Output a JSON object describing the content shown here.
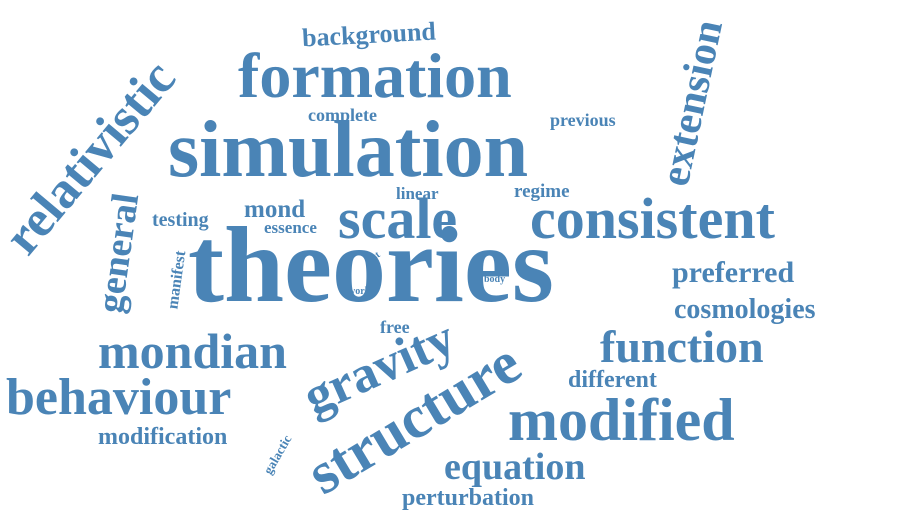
{
  "color": "#4a84b6",
  "words": [
    {
      "text": "theories",
      "weight": 100
    },
    {
      "text": "simulation",
      "weight": 72
    },
    {
      "text": "formation",
      "weight": 56
    },
    {
      "text": "scale",
      "weight": 50
    },
    {
      "text": "consistent",
      "weight": 50
    },
    {
      "text": "structure",
      "weight": 48
    },
    {
      "text": "gravity",
      "weight": 44
    },
    {
      "text": "relativistic",
      "weight": 42
    },
    {
      "text": "behaviour",
      "weight": 40
    },
    {
      "text": "mondian",
      "weight": 40
    },
    {
      "text": "modified",
      "weight": 38
    },
    {
      "text": "function",
      "weight": 32
    },
    {
      "text": "extension",
      "weight": 30
    },
    {
      "text": "equation",
      "weight": 28
    },
    {
      "text": "general",
      "weight": 26
    },
    {
      "text": "preferred",
      "weight": 22
    },
    {
      "text": "cosmologies",
      "weight": 20
    },
    {
      "text": "background",
      "weight": 18
    },
    {
      "text": "perturbation",
      "weight": 18
    },
    {
      "text": "different",
      "weight": 16
    },
    {
      "text": "modification",
      "weight": 16
    },
    {
      "text": "mond",
      "weight": 16
    },
    {
      "text": "complete",
      "weight": 12
    },
    {
      "text": "previous",
      "weight": 12
    },
    {
      "text": "regime",
      "weight": 12
    },
    {
      "text": "linear",
      "weight": 11
    },
    {
      "text": "testing",
      "weight": 12
    },
    {
      "text": "essence",
      "weight": 11
    },
    {
      "text": "free",
      "weight": 11
    },
    {
      "text": "manifest",
      "weight": 10
    },
    {
      "text": "galactic",
      "weight": 8
    },
    {
      "text": "test",
      "weight": 6
    },
    {
      "text": "work",
      "weight": 6
    },
    {
      "text": "body",
      "weight": 6
    }
  ]
}
